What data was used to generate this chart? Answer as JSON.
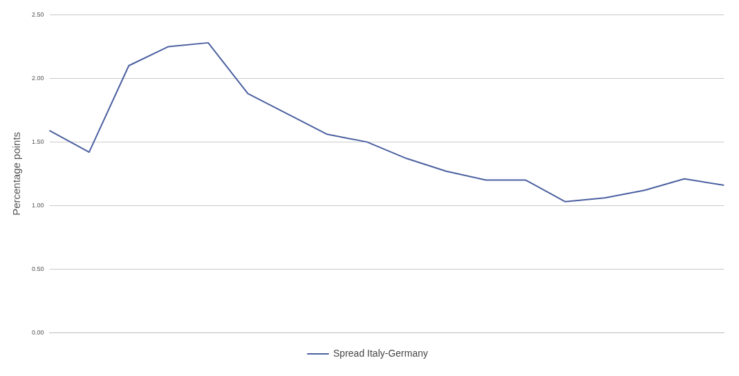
{
  "chart_data": {
    "type": "line",
    "ylabel": "Percentage points",
    "categories": [
      null,
      null,
      null,
      null,
      null,
      null,
      null,
      null,
      null,
      null,
      null,
      null,
      null,
      null,
      null,
      null,
      null,
      null
    ],
    "series": [
      {
        "name": "Spread Italy-Germany",
        "color": "#4a5fa0",
        "values": [
          1.59,
          1.42,
          2.1,
          2.25,
          2.28,
          1.88,
          1.72,
          1.56,
          1.5,
          1.37,
          1.27,
          1.2,
          1.2,
          1.03,
          1.06,
          1.12,
          1.21,
          1.16
        ]
      }
    ],
    "ylim": [
      0,
      2.5
    ],
    "yticks": [
      {
        "value": 0,
        "label": "0.00"
      },
      {
        "value": 0.5,
        "label": "0.50"
      },
      {
        "value": 1,
        "label": "1.00"
      },
      {
        "value": 1.5,
        "label": "1.50"
      },
      {
        "value": 2,
        "label": "2.00"
      },
      {
        "value": 2.5,
        "label": "2.50"
      }
    ],
    "grid": "y",
    "legend": "bottom",
    "marker": "none",
    "line_style": "solid"
  }
}
